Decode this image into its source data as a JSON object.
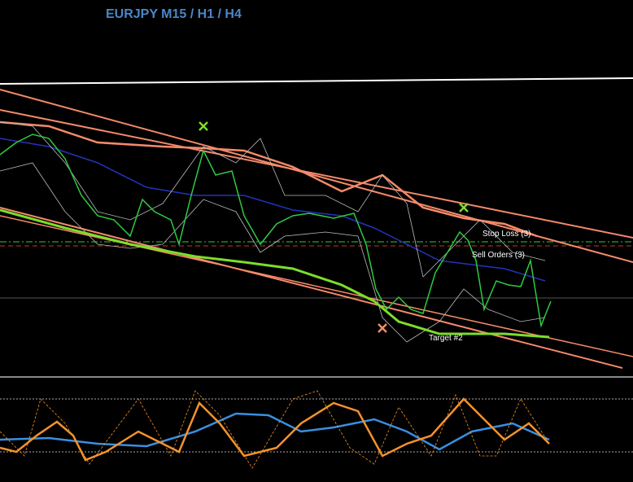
{
  "header": {
    "title": "EURJPY M15 / H1 / H4"
  },
  "annotations": {
    "stop_loss": "Stop Loss (3)",
    "sell_orders": "Sell Orders (3)",
    "target": "Target #2"
  }
}
